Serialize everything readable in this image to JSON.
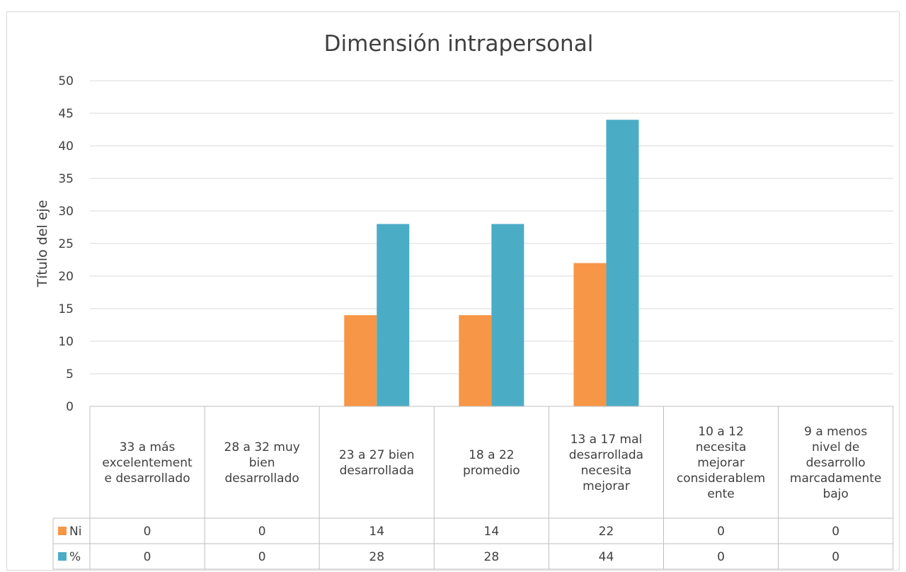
{
  "chart_data": {
    "type": "bar",
    "title": "Dimensión intrapersonal",
    "xlabel": "",
    "ylabel": "Título del eje",
    "ylim": [
      0,
      50
    ],
    "yticks": [
      0,
      5,
      10,
      15,
      20,
      25,
      30,
      35,
      40,
      45,
      50
    ],
    "grid": true,
    "legend": "data-table",
    "categories": [
      [
        "33 a más",
        "excelentement",
        "e desarrollado"
      ],
      [
        "28 a 32 muy",
        "bien",
        "desarrollado"
      ],
      [
        "23 a 27 bien",
        "desarrollada"
      ],
      [
        "18 a 22",
        "promedio"
      ],
      [
        "13 a 17 mal",
        "desarrollada",
        "necesita",
        "mejorar"
      ],
      [
        "10 a 12",
        "necesita",
        "mejorar",
        "considerablem",
        "ente"
      ],
      [
        "9 a menos",
        "nivel de",
        "desarrollo",
        "marcadamente",
        "bajo"
      ]
    ],
    "series": [
      {
        "name": "Ni",
        "color": "#f79646",
        "values": [
          0,
          0,
          14,
          14,
          22,
          0,
          0
        ]
      },
      {
        "name": "%",
        "color": "#4bacc6",
        "values": [
          0,
          0,
          28,
          28,
          44,
          0,
          0
        ]
      }
    ]
  }
}
